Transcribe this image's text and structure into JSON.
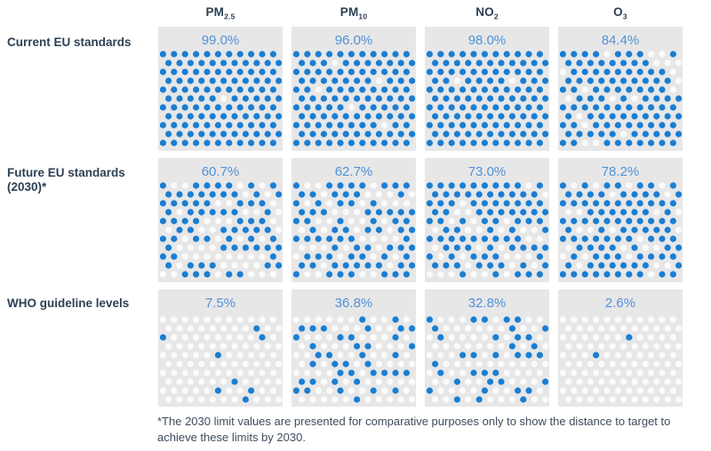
{
  "columns": [
    {
      "base": "PM",
      "sub": "2.5"
    },
    {
      "base": "PM",
      "sub": "10"
    },
    {
      "base": "NO",
      "sub": "2"
    },
    {
      "base": "O",
      "sub": "3"
    }
  ],
  "row_labels": [
    "Current EU standards",
    "Future EU standards (2030)*",
    "WHO guideline levels"
  ],
  "footnote": "*The 2030 limit values are presented for comparative purposes only to show the distance to target to achieve these limits by 2030.",
  "colors": {
    "dot_blue": "#1a7ed2",
    "dot_empty": "#fbfbfb",
    "cell_background": "#e7e7e8",
    "percent_text": "#4f92d7",
    "label_text": "#2e4154",
    "footnote_text": "#3e4c5e",
    "page_background": "#ffffff"
  },
  "chart_data": {
    "type": "table",
    "subtype": "dot-matrix-waffle",
    "title": "",
    "columns": [
      "PM2.5",
      "PM10",
      "NO2",
      "O3"
    ],
    "rows": [
      "Current EU standards",
      "Future EU standards (2030)*",
      "WHO guideline levels"
    ],
    "values_pct": [
      [
        99.0,
        96.0,
        98.0,
        84.4
      ],
      [
        60.7,
        62.7,
        73.0,
        78.2
      ],
      [
        7.5,
        36.8,
        32.8,
        2.6
      ]
    ],
    "value_labels": [
      [
        "99.0%",
        "96.0%",
        "98.0%",
        "84.4%"
      ],
      [
        "60.7%",
        "62.7%",
        "73.0%",
        "78.2%"
      ],
      [
        "7.5%",
        "36.8%",
        "32.8%",
        "2.6%"
      ]
    ],
    "grid": {
      "dot_cols": 11,
      "dot_rows_per_band": [
        11,
        11,
        10
      ],
      "stagger": "odd-rows-shifted-right"
    },
    "legend": "none",
    "footnote": "*The 2030 limit values are presented for comparative purposes only to show the distance to target to achieve these limits by 2030.",
    "known_dot_overrides": {
      "0-0": {
        "white": [
          [
            5,
            5
          ]
        ]
      },
      "0-1": {
        "white": [
          [
            1,
            3
          ],
          [
            3,
            7
          ],
          [
            4,
            2
          ],
          [
            6,
            5
          ],
          [
            8,
            8
          ]
        ]
      },
      "0-2": {
        "white": [
          [
            3,
            2
          ],
          [
            3,
            7
          ]
        ]
      },
      "2-3": {
        "blue": [
          [
            2,
            6
          ],
          [
            4,
            3
          ]
        ]
      }
    }
  }
}
